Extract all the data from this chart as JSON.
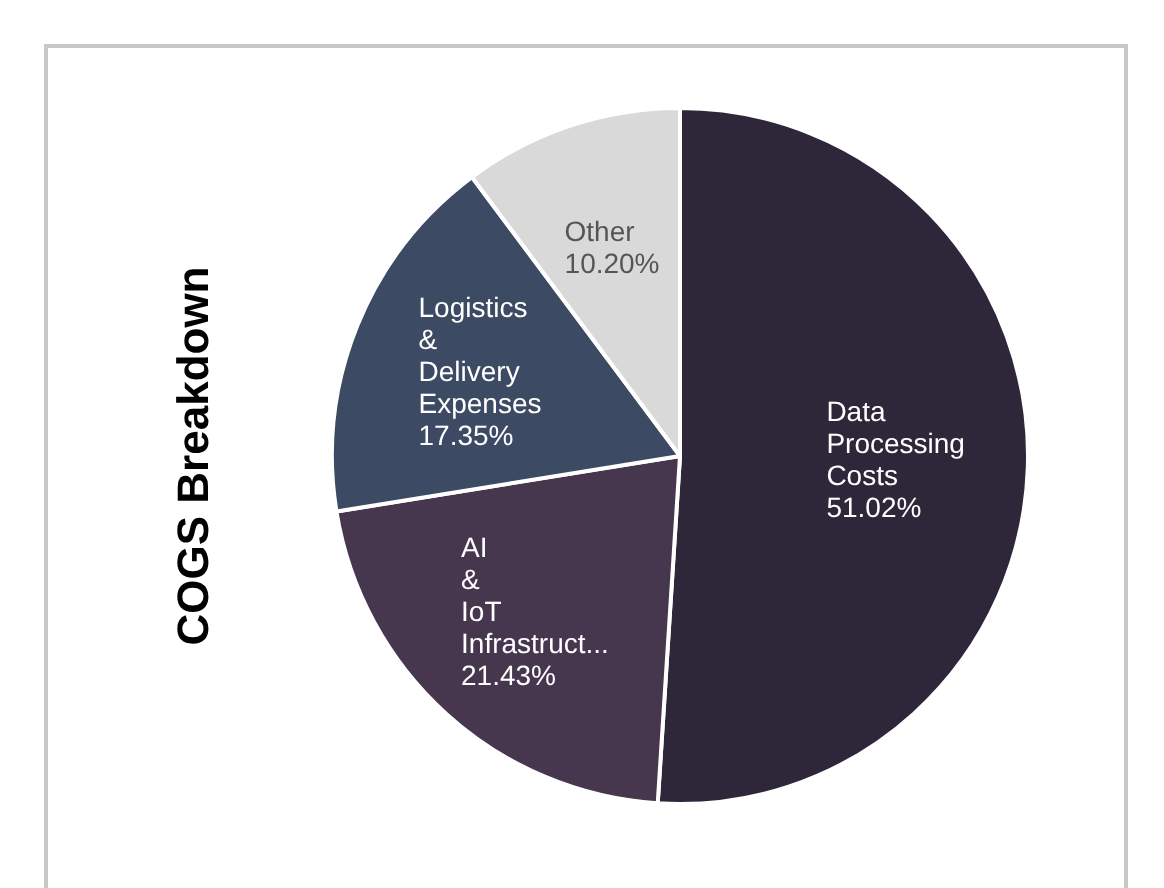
{
  "chart_data": {
    "type": "pie",
    "title": "COGS Breakdown",
    "categories": [
      "Data Processing Costs",
      "AI & IoT Infrastruct...",
      "Logistics & Delivery Expenses",
      "Other"
    ],
    "values": [
      51.02,
      21.43,
      17.35,
      10.2
    ],
    "colors": [
      "#2e2739",
      "#46374f",
      "#3d4a63",
      "#d9d9d9"
    ],
    "value_labels": [
      "51.02%",
      "21.43%",
      "17.35%",
      "10.20%"
    ],
    "legend": false
  }
}
